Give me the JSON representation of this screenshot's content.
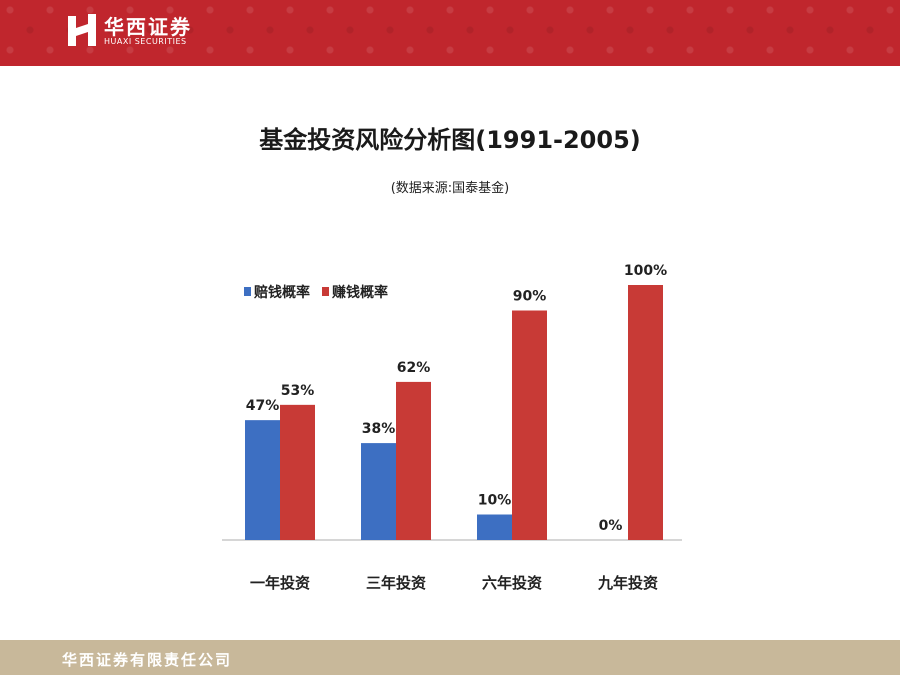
{
  "header": {
    "logo_cn": "华西证券",
    "logo_en": "HUAXI SECURITIES",
    "brand_color": "#c0262d"
  },
  "title": "基金投资风险分析图(1991-2005)",
  "subtitle": "(数据来源:国泰基金)",
  "chart_data": {
    "type": "bar",
    "categories": [
      "一年投资",
      "三年投资",
      "六年投资",
      "九年投资"
    ],
    "series": [
      {
        "name": "赔钱概率",
        "values": [
          47,
          38,
          10,
          0
        ],
        "labels": [
          "47%",
          "38%",
          "10%",
          "0%"
        ],
        "color": "#3d6fc2"
      },
      {
        "name": "赚钱概率",
        "values": [
          53,
          62,
          90,
          100
        ],
        "labels": [
          "53%",
          "62%",
          "90%",
          "100%"
        ],
        "color": "#c83a36"
      }
    ],
    "ylim": [
      0,
      100
    ],
    "grid": false,
    "legend_position": "top-left"
  },
  "footer": {
    "company": "华西证券有限责任公司",
    "color": "#c8b89a"
  }
}
